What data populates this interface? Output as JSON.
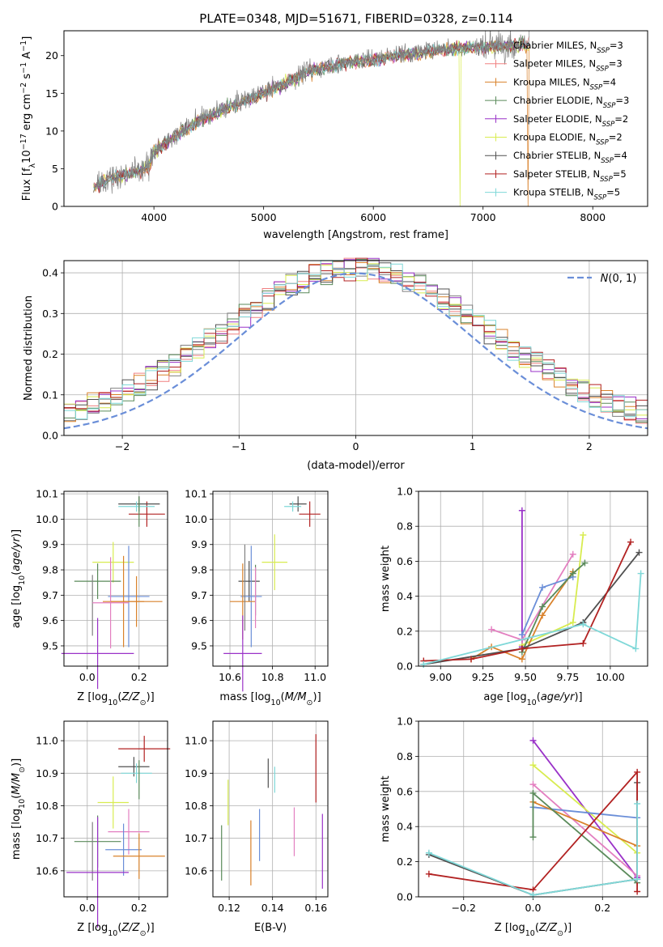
{
  "title": "PLATE=0348, MJD=51671, FIBERID=0328, z=0.114",
  "colors": {
    "Chabrier MILES": "#808080",
    "Salpeter MILES": "#f08080",
    "Kroupa MILES": "#d9822b",
    "Chabrier ELODIE": "#5a8a5a",
    "Salpeter ELODIE": "#9a32c8",
    "Kroupa ELODIE": "#d8ec50",
    "Chabrier STELIB": "#505050",
    "Salpeter STELIB": "#b22222",
    "Kroupa STELIB": "#7fd8d8",
    "blue": "#6a8ed8",
    "pink": "#e37fc0",
    "dkgreen": "#4d7a4d"
  },
  "chart_data": [
    {
      "id": "spectrum",
      "type": "line",
      "xlabel": "wavelength [Angstrom, rest frame]",
      "ylabel": "Flux [f_λ 10^-17 erg cm^-2 s^-1 A^-1]",
      "xlim": [
        3180,
        8500
      ],
      "ylim": [
        0,
        23.3
      ],
      "xticks": [
        4000,
        5000,
        6000,
        7000,
        8000
      ],
      "yticks": [
        0,
        5,
        10,
        15,
        20
      ],
      "legend_position": "upper right",
      "legend": [
        {
          "label": "Chabrier MILES, N_SSP=3",
          "base": "Chabrier MILES, N",
          "sub": "SSP",
          "tail": "=3",
          "color": "#808080"
        },
        {
          "label": "Salpeter MILES, N_SSP=3",
          "base": "Salpeter MILES, N",
          "sub": "SSP",
          "tail": "=3",
          "color": "#f08080"
        },
        {
          "label": "Kroupa MILES, N_SSP=4",
          "base": "Kroupa MILES, N",
          "sub": "SSP",
          "tail": "=4",
          "color": "#d9822b"
        },
        {
          "label": "Chabrier ELODIE, N_SSP=3",
          "base": "Chabrier ELODIE, N",
          "sub": "SSP",
          "tail": "=3",
          "color": "#5a8a5a"
        },
        {
          "label": "Salpeter ELODIE, N_SSP=2",
          "base": "Salpeter ELODIE, N",
          "sub": "SSP",
          "tail": "=2",
          "color": "#9a32c8"
        },
        {
          "label": "Kroupa ELODIE, N_SSP=2",
          "base": "Kroupa ELODIE, N",
          "sub": "SSP",
          "tail": "=2",
          "color": "#d8ec50"
        },
        {
          "label": "Chabrier STELIB, N_SSP=4",
          "base": "Chabrier STELIB, N",
          "sub": "SSP",
          "tail": "=4",
          "color": "#505050"
        },
        {
          "label": "Salpeter STELIB, N_SSP=5",
          "base": "Salpeter STELIB, N",
          "sub": "SSP",
          "tail": "=5",
          "color": "#b22222"
        },
        {
          "label": "Kroupa STELIB, N_SSP=5",
          "base": "Kroupa STELIB, N",
          "sub": "SSP",
          "tail": "=5",
          "color": "#7fd8d8"
        }
      ],
      "continuum": [
        [
          3450,
          2.8
        ],
        [
          3600,
          3.8
        ],
        [
          3800,
          4.6
        ],
        [
          3950,
          5.3
        ],
        [
          4000,
          7.5
        ],
        [
          4200,
          9.5
        ],
        [
          4400,
          11.5
        ],
        [
          4600,
          12.8
        ],
        [
          4800,
          14.0
        ],
        [
          5000,
          15.2
        ],
        [
          5200,
          16.5
        ],
        [
          5400,
          18.0
        ],
        [
          5600,
          18.8
        ],
        [
          5800,
          19.3
        ],
        [
          6000,
          19.6
        ],
        [
          6200,
          20.2
        ],
        [
          6400,
          20.5
        ],
        [
          6600,
          20.9
        ],
        [
          6800,
          21.2
        ],
        [
          7000,
          21.3
        ],
        [
          7200,
          21.5
        ],
        [
          7400,
          21.6
        ]
      ],
      "dips": [
        [
          6790,
          0
        ],
        [
          7410,
          0
        ]
      ]
    },
    {
      "id": "residuals",
      "type": "histogram",
      "xlabel": "(data-model)/error",
      "ylabel": "Normed distribution",
      "xlim": [
        -2.5,
        2.5
      ],
      "ylim": [
        0,
        0.43
      ],
      "xticks": [
        -2,
        -1,
        0,
        1,
        2
      ],
      "xtick_labels": [
        "−2",
        "−1",
        "0",
        "1",
        "2"
      ],
      "yticks": [
        0.0,
        0.1,
        0.2,
        0.3,
        0.4
      ],
      "bins": 50,
      "reference_curve": {
        "label": "N(0,1)",
        "mean": 0,
        "sigma": 1,
        "color": "#6a8ed8"
      },
      "legend_position": "upper right"
    },
    {
      "id": "age_vs_Z",
      "type": "errorbar",
      "xlabel": "Z [log10(Z/Z⊙)]",
      "ylabel": "age [log10(age/yr)]",
      "xlim": [
        -0.09,
        0.31
      ],
      "ylim": [
        9.42,
        10.11
      ],
      "xticks": [
        0.0,
        0.2
      ],
      "yticks": [
        9.5,
        9.6,
        9.7,
        9.8,
        9.9,
        10.0,
        10.1
      ],
      "points": [
        {
          "x": 0.23,
          "xerr": 0.07,
          "y": 10.02,
          "yerr": 0.05,
          "color": "#b22222"
        },
        {
          "x": 0.2,
          "xerr": 0.08,
          "y": 10.06,
          "yerr": 0.03,
          "color": "#505050"
        },
        {
          "x": 0.19,
          "xerr": 0.07,
          "y": 10.05,
          "yerr": 0.02,
          "color": "#7fd8d8"
        },
        {
          "x": 0.2,
          "xerr": 0.0,
          "y": 10.03,
          "yerr": 0.06,
          "color": "#5a8a5a"
        },
        {
          "x": 0.1,
          "xerr": 0.08,
          "y": 9.83,
          "yerr": 0.08,
          "color": "#d8ec50"
        },
        {
          "x": 0.04,
          "xerr": 0.09,
          "y": 9.755,
          "yerr": 0.07,
          "color": "#5a8a5a"
        },
        {
          "x": 0.02,
          "xerr": 0.0,
          "y": 9.66,
          "yerr": 0.12,
          "color": "#808080"
        },
        {
          "x": 0.16,
          "xerr": 0.08,
          "y": 9.695,
          "yerr": 0.2,
          "color": "#6a8ed8"
        },
        {
          "x": 0.14,
          "xerr": 0.08,
          "y": 9.675,
          "yerr": 0.18,
          "color": "#d9822b"
        },
        {
          "x": 0.09,
          "xerr": 0.07,
          "y": 9.67,
          "yerr": 0.18,
          "color": "#e37fc0"
        },
        {
          "x": 0.04,
          "xerr": 0.14,
          "y": 9.47,
          "yerr": 0.14,
          "color": "#9a32c8"
        },
        {
          "x": 0.19,
          "xerr": 0.1,
          "y": 9.675,
          "yerr": 0.1,
          "color": "#d9822b"
        }
      ]
    },
    {
      "id": "age_vs_mass",
      "type": "errorbar",
      "xlabel": "mass [log10(M/M⊙)]",
      "ylabel": "",
      "xlim": [
        10.52,
        11.06
      ],
      "ylim": [
        9.42,
        10.11
      ],
      "xticks": [
        10.6,
        10.8,
        11.0
      ],
      "yticks": [
        9.5,
        9.6,
        9.7,
        9.8,
        9.9,
        10.0,
        10.1
      ],
      "points": [
        {
          "x": 10.975,
          "xerr": 0.05,
          "y": 10.02,
          "yerr": 0.05,
          "color": "#b22222"
        },
        {
          "x": 10.92,
          "xerr": 0.04,
          "y": 10.06,
          "yerr": 0.03,
          "color": "#505050"
        },
        {
          "x": 10.895,
          "xerr": 0.04,
          "y": 10.05,
          "yerr": 0.02,
          "color": "#7fd8d8"
        },
        {
          "x": 10.81,
          "xerr": 0.06,
          "y": 9.83,
          "yerr": 0.11,
          "color": "#d8ec50"
        },
        {
          "x": 10.69,
          "xerr": 0.05,
          "y": 9.755,
          "yerr": 0.08,
          "color": "#505050"
        },
        {
          "x": 10.72,
          "xerr": 0.0,
          "y": 9.72,
          "yerr": 0.1,
          "color": "#5a8a5a"
        },
        {
          "x": 10.7,
          "xerr": 0.05,
          "y": 9.695,
          "yerr": 0.2,
          "color": "#6a8ed8"
        },
        {
          "x": 10.66,
          "xerr": 0.06,
          "y": 9.675,
          "yerr": 0.15,
          "color": "#d9822b"
        },
        {
          "x": 10.72,
          "xerr": 0.0,
          "y": 9.69,
          "yerr": 0.12,
          "color": "#e37fc0"
        },
        {
          "x": 10.66,
          "xerr": 0.09,
          "y": 9.47,
          "yerr": 0.15,
          "color": "#9a32c8"
        },
        {
          "x": 10.67,
          "xerr": 0.0,
          "y": 9.73,
          "yerr": 0.17,
          "color": "#808080"
        }
      ]
    },
    {
      "id": "weight_vs_age",
      "type": "line",
      "xlabel": "age [log10(age/yr)]",
      "ylabel": "mass weight",
      "xlim": [
        8.87,
        10.22
      ],
      "ylim": [
        0,
        1.0
      ],
      "xticks": [
        9.0,
        9.25,
        9.5,
        9.75,
        10.0
      ],
      "xtick_labels": [
        "9.00",
        "9.25",
        "9.50",
        "9.75",
        "10.00"
      ],
      "yticks": [
        0.0,
        0.2,
        0.4,
        0.6,
        0.8,
        1.0
      ],
      "series": [
        {
          "color": "#9a32c8",
          "x": [
            9.48,
            9.48
          ],
          "y": [
            0.11,
            0.89
          ]
        },
        {
          "color": "#d8ec50",
          "x": [
            9.48,
            9.78,
            9.84
          ],
          "y": [
            0.12,
            0.25,
            0.75
          ]
        },
        {
          "color": "#e37fc0",
          "x": [
            9.3,
            9.48,
            9.78
          ],
          "y": [
            0.21,
            0.15,
            0.64
          ]
        },
        {
          "color": "#6a8ed8",
          "x": [
            9.48,
            9.6,
            9.78
          ],
          "y": [
            0.18,
            0.45,
            0.51
          ]
        },
        {
          "color": "#d9822b",
          "x": [
            9.18,
            9.3,
            9.48,
            9.6,
            9.78
          ],
          "y": [
            0.04,
            0.11,
            0.04,
            0.29,
            0.54
          ]
        },
        {
          "color": "#5a8a5a",
          "x": [
            9.48,
            9.6,
            9.78,
            9.85
          ],
          "y": [
            0.08,
            0.34,
            0.53,
            0.59
          ]
        },
        {
          "color": "#505050",
          "x": [
            8.9,
            9.48,
            9.84,
            10.17
          ],
          "y": [
            0.01,
            0.1,
            0.25,
            0.65
          ]
        },
        {
          "color": "#b22222",
          "x": [
            8.9,
            9.18,
            9.48,
            9.84,
            10.12
          ],
          "y": [
            0.03,
            0.04,
            0.1,
            0.13,
            0.71
          ]
        },
        {
          "color": "#7fd8d8",
          "x": [
            8.9,
            9.84,
            10.15,
            10.18
          ],
          "y": [
            0.01,
            0.24,
            0.1,
            0.53
          ]
        }
      ]
    },
    {
      "id": "mass_vs_Z",
      "type": "errorbar",
      "xlabel": "Z [log10(Z/Z⊙)]",
      "ylabel": "mass [log10(M/M⊙)]",
      "xlim": [
        -0.09,
        0.31
      ],
      "ylim": [
        10.52,
        11.06
      ],
      "xticks": [
        0.0,
        0.2
      ],
      "yticks": [
        10.6,
        10.7,
        10.8,
        10.9,
        11.0
      ],
      "points": [
        {
          "x": 0.22,
          "xerr": 0.1,
          "y": 10.975,
          "yerr": 0.04,
          "color": "#b22222"
        },
        {
          "x": 0.18,
          "xerr": 0.06,
          "y": 10.92,
          "yerr": 0.03,
          "color": "#505050"
        },
        {
          "x": 0.19,
          "xerr": 0.06,
          "y": 10.9,
          "yerr": 0.03,
          "color": "#7fd8d8"
        },
        {
          "x": 0.2,
          "xerr": 0.0,
          "y": 10.88,
          "yerr": 0.06,
          "color": "#5a8a5a"
        },
        {
          "x": 0.1,
          "xerr": 0.06,
          "y": 10.81,
          "yerr": 0.08,
          "color": "#d8ec50"
        },
        {
          "x": 0.04,
          "xerr": 0.09,
          "y": 10.69,
          "yerr": 0.08,
          "color": "#5a8a5a"
        },
        {
          "x": 0.02,
          "xerr": 0.0,
          "y": 10.66,
          "yerr": 0.09,
          "color": "#808080"
        },
        {
          "x": 0.16,
          "xerr": 0.08,
          "y": 10.72,
          "yerr": 0.07,
          "color": "#e37fc0"
        },
        {
          "x": 0.14,
          "xerr": 0.07,
          "y": 10.665,
          "yerr": 0.08,
          "color": "#6a8ed8"
        },
        {
          "x": 0.2,
          "xerr": 0.1,
          "y": 10.645,
          "yerr": 0.07,
          "color": "#d9822b"
        },
        {
          "x": 0.04,
          "xerr": 0.12,
          "y": 10.595,
          "yerr": 0.17,
          "color": "#9a32c8"
        }
      ]
    },
    {
      "id": "mass_vs_ebv",
      "type": "errorbar",
      "xlabel": "E(B-V)",
      "ylabel": "",
      "xlim": [
        0.1125,
        0.1655
      ],
      "ylim": [
        10.52,
        11.06
      ],
      "xticks": [
        0.12,
        0.14,
        0.16
      ],
      "xtick_labels": [
        "0.12",
        "0.14",
        "0.16"
      ],
      "yticks": [
        10.6,
        10.7,
        10.8,
        10.9,
        11.0
      ],
      "points": [
        {
          "x": 0.1165,
          "xerr": 0,
          "y": 10.655,
          "yerr": 0.085,
          "color": "#5a8a5a"
        },
        {
          "x": 0.1195,
          "xerr": 0,
          "y": 10.81,
          "yerr": 0.07,
          "color": "#d8ec50"
        },
        {
          "x": 0.13,
          "xerr": 0,
          "y": 10.655,
          "yerr": 0.1,
          "color": "#d9822b"
        },
        {
          "x": 0.134,
          "xerr": 0,
          "y": 10.71,
          "yerr": 0.08,
          "color": "#6a8ed8"
        },
        {
          "x": 0.138,
          "xerr": 0,
          "y": 10.9,
          "yerr": 0.045,
          "color": "#505050"
        },
        {
          "x": 0.141,
          "xerr": 0,
          "y": 10.88,
          "yerr": 0.04,
          "color": "#7fd8d8"
        },
        {
          "x": 0.15,
          "xerr": 0,
          "y": 10.72,
          "yerr": 0.075,
          "color": "#e37fc0"
        },
        {
          "x": 0.16,
          "xerr": 0,
          "y": 10.915,
          "yerr": 0.105,
          "color": "#b22222"
        },
        {
          "x": 0.163,
          "xerr": 0,
          "y": 10.66,
          "yerr": 0.115,
          "color": "#9a32c8"
        }
      ]
    },
    {
      "id": "weight_vs_Z",
      "type": "line",
      "xlabel": "Z [log10(Z/Z⊙)]",
      "ylabel": "mass weight",
      "xlim": [
        -0.33,
        0.33
      ],
      "ylim": [
        0,
        1.0
      ],
      "xticks": [
        -0.2,
        0.0,
        0.2
      ],
      "xtick_labels": [
        "−0.2",
        "0.0",
        "0.2"
      ],
      "yticks": [
        0.0,
        0.2,
        0.4,
        0.6,
        0.8,
        1.0
      ],
      "series": [
        {
          "color": "#9a32c8",
          "x": [
            0.0,
            0.3
          ],
          "y": [
            0.89,
            0.11
          ]
        },
        {
          "color": "#d8ec50",
          "x": [
            0.0,
            0.3
          ],
          "y": [
            0.75,
            0.25
          ]
        },
        {
          "color": "#e37fc0",
          "x": [
            0.0,
            0.3
          ],
          "y": [
            0.64,
            0.12
          ]
        },
        {
          "color": "#6a8ed8",
          "x": [
            0.0,
            0.3
          ],
          "y": [
            0.51,
            0.45
          ]
        },
        {
          "color": "#d9822b",
          "x": [
            0.0,
            0.3
          ],
          "y": [
            0.54,
            0.29
          ]
        },
        {
          "color": "#5a8a5a",
          "x": [
            0.0,
            0.0,
            0.3
          ],
          "y": [
            0.34,
            0.59,
            0.08
          ]
        },
        {
          "color": "#505050",
          "x": [
            -0.3,
            0.0,
            0.3,
            0.3
          ],
          "y": [
            0.24,
            0.01,
            0.1,
            0.65
          ]
        },
        {
          "color": "#b22222",
          "x": [
            -0.3,
            0.0,
            0.3,
            0.3
          ],
          "y": [
            0.13,
            0.04,
            0.71,
            0.03
          ]
        },
        {
          "color": "#7fd8d8",
          "x": [
            -0.3,
            0.0,
            0.3,
            0.3
          ],
          "y": [
            0.25,
            0.01,
            0.1,
            0.53
          ]
        }
      ]
    }
  ]
}
